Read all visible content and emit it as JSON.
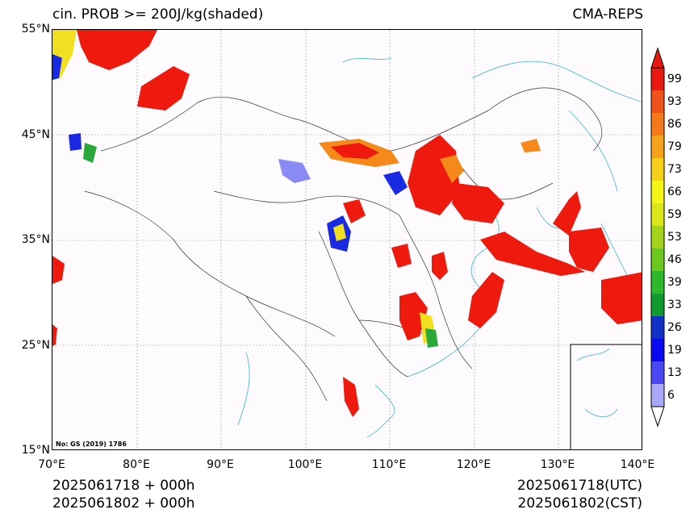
{
  "header": {
    "title_left": "cin. PROB >= 200J/kg(shaded)",
    "title_right": "CMA-REPS"
  },
  "axes": {
    "lat_ticks": [
      "55°N",
      "45°N",
      "35°N",
      "25°N",
      "15°N"
    ],
    "lon_ticks": [
      "70°E",
      "80°E",
      "90°E",
      "100°E",
      "110°E",
      "120°E",
      "130°E",
      "140°E"
    ]
  },
  "footer": {
    "left_line1": "2025061718  +  000h",
    "left_line2": "2025061802  +  000h",
    "right_line1": "2025061718(UTC)",
    "right_line2": "2025061802(CST)"
  },
  "map_note": "No: GS (2019) 1786",
  "colorbar": {
    "labels": [
      "99",
      "93",
      "86",
      "79",
      "73",
      "66",
      "59",
      "53",
      "46",
      "39",
      "33",
      "26",
      "19",
      "13",
      "6"
    ],
    "colors": [
      "#a8a8f8",
      "#4a4af5",
      "#0a0af0",
      "#1030c8",
      "#109a30",
      "#2db82d",
      "#6cc81e",
      "#a4d41a",
      "#d8e61a",
      "#f5f51a",
      "#f5cf1a",
      "#f5a21a",
      "#f5781a",
      "#f0501a",
      "#e81a10"
    ]
  },
  "colors": {
    "high": "#ee1a0e",
    "orange": "#f58a1a",
    "yellow": "#f0e020",
    "green": "#2aa83a",
    "blue": "#1a2ae0",
    "light_blue": "#8a8af5",
    "water": "#3ab0d8",
    "border": "#333333"
  }
}
